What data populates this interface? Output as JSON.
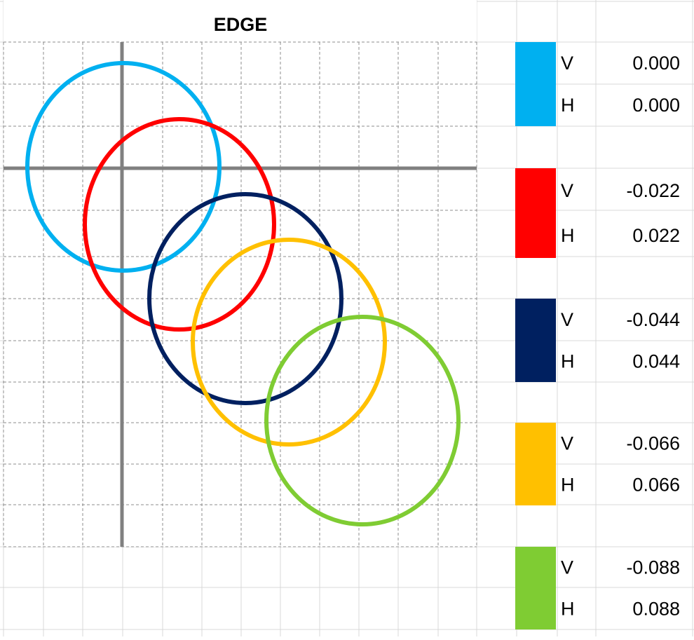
{
  "chart": {
    "title": "EDGE"
  },
  "legend": [
    {
      "rows": [
        {
          "label": "V",
          "value": "0.000"
        },
        {
          "label": "H",
          "value": "0.000"
        }
      ]
    },
    {
      "rows": [
        {
          "label": "V",
          "value": "-0.022"
        },
        {
          "label": "H",
          "value": "0.022"
        }
      ]
    },
    {
      "rows": [
        {
          "label": "V",
          "value": "-0.044"
        },
        {
          "label": "H",
          "value": "0.044"
        }
      ]
    },
    {
      "rows": [
        {
          "label": "V",
          "value": "-0.066"
        },
        {
          "label": "H",
          "value": "0.066"
        }
      ]
    },
    {
      "rows": [
        {
          "label": "V",
          "value": "-0.088"
        },
        {
          "label": "H",
          "value": "0.088"
        }
      ]
    }
  ]
}
